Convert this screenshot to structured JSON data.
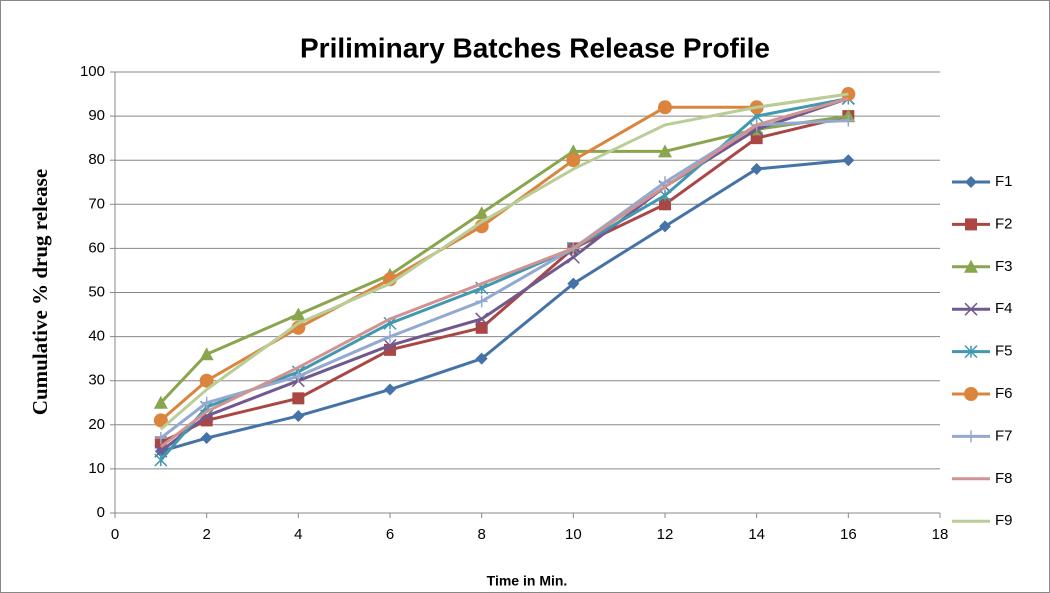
{
  "chart_data": {
    "type": "line",
    "title": "Priliminary Batches Release Profile",
    "x_label": "Time in Min.",
    "y_label": "Cumulative % drug release",
    "x": [
      1,
      2,
      4,
      6,
      8,
      10,
      12,
      14,
      16
    ],
    "series": [
      {
        "name": "F1",
        "color": "#4572a7",
        "marker": "diamond",
        "values": [
          14,
          17,
          22,
          28,
          35,
          52,
          65,
          78,
          80
        ]
      },
      {
        "name": "F2",
        "color": "#aa4643",
        "marker": "square",
        "values": [
          16,
          21,
          26,
          37,
          42,
          60,
          70,
          85,
          90
        ]
      },
      {
        "name": "F3",
        "color": "#89a54e",
        "marker": "triangle",
        "values": [
          25,
          36,
          45,
          54,
          68,
          82,
          82,
          87,
          90
        ]
      },
      {
        "name": "F4",
        "color": "#71588f",
        "marker": "x",
        "values": [
          14,
          22,
          30,
          38,
          44,
          58,
          74,
          87,
          94
        ]
      },
      {
        "name": "F5",
        "color": "#4198af",
        "marker": "star",
        "values": [
          12,
          24,
          32,
          43,
          51,
          60,
          72,
          90,
          94
        ]
      },
      {
        "name": "F6",
        "color": "#db843d",
        "marker": "circle",
        "values": [
          21,
          30,
          42,
          53,
          65,
          80,
          92,
          92,
          95
        ]
      },
      {
        "name": "F7",
        "color": "#93a9cf",
        "marker": "plus",
        "values": [
          17,
          25,
          31,
          40,
          48,
          60,
          75,
          88,
          89
        ]
      },
      {
        "name": "F8",
        "color": "#d19392",
        "marker": "none",
        "values": [
          15,
          23,
          33,
          44,
          52,
          60,
          74,
          88,
          94
        ]
      },
      {
        "name": "F9",
        "color": "#b9cd96",
        "marker": "none",
        "values": [
          19,
          28,
          43,
          52,
          66,
          78,
          88,
          92,
          95
        ]
      }
    ],
    "xlim": [
      0,
      18
    ],
    "xticks": [
      0,
      2,
      4,
      6,
      8,
      10,
      12,
      14,
      16,
      18
    ],
    "ylim": [
      0,
      100
    ],
    "yticks": [
      0,
      10,
      20,
      30,
      40,
      50,
      60,
      70,
      80,
      90,
      100
    ],
    "grid": true,
    "legend": "right"
  }
}
